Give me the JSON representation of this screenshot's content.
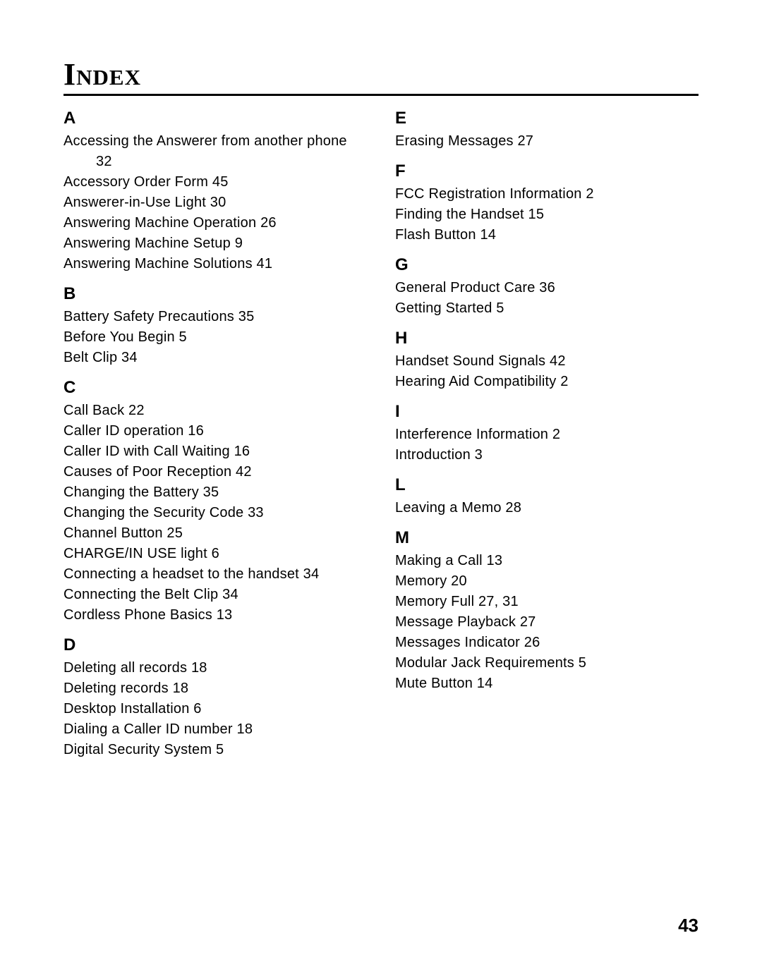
{
  "title": "Index",
  "page_number": "43",
  "left": {
    "A": [
      "Accessing the Answerer from another phone  32",
      "Accessory Order Form  45",
      "Answerer-in-Use Light  30",
      "Answering Machine Operation  26",
      "Answering Machine Setup  9",
      "Answering Machine Solutions  41"
    ],
    "B": [
      "Battery Safety Precautions  35",
      "Before You Begin  5",
      "Belt Clip  34"
    ],
    "C": [
      "Call Back  22",
      "Caller ID operation  16",
      "Caller ID with Call Waiting  16",
      "Causes of Poor Reception  42",
      "Changing the Battery  35",
      "Changing the Security Code  33",
      "Channel Button  25",
      "CHARGE/IN USE light  6",
      "Connecting a headset to the handset  34",
      "Connecting the Belt Clip  34",
      "Cordless Phone Basics  13"
    ],
    "D": [
      "Deleting all records  18",
      "Deleting records  18",
      "Desktop Installation  6",
      "Dialing a Caller ID  number  18",
      "Digital Security System  5"
    ]
  },
  "right": {
    "E": [
      "Erasing Messages  27"
    ],
    "F": [
      "FCC Registration Information  2",
      "Finding the Handset  15",
      "Flash Button  14"
    ],
    "G": [
      "General Product Care  36",
      "Getting Started  5"
    ],
    "H": [
      "Handset Sound Signals  42",
      "Hearing Aid Compatibility  2"
    ],
    "I": [
      "Interference Information  2",
      "Introduction  3"
    ],
    "L": [
      "Leaving a Memo  28"
    ],
    "M": [
      "Making a Call  13",
      "Memory  20",
      "Memory Full  27, 31",
      "Message Playback  27",
      "Messages Indicator  26",
      "Modular Jack Requirements  5",
      "Mute Button  14"
    ]
  }
}
